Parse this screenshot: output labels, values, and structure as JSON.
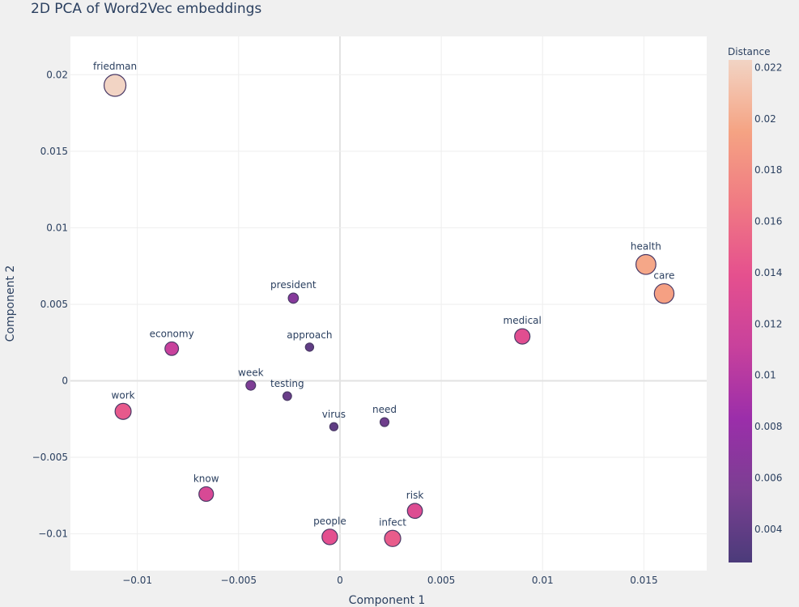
{
  "chart_data": {
    "type": "scatter",
    "title": "2D PCA of Word2Vec embeddings",
    "xlabel": "Component 1",
    "ylabel": "Component 2",
    "xlim": [
      -0.0133,
      0.0181
    ],
    "ylim": [
      -0.0124,
      0.0225
    ],
    "xticks": [
      -0.01,
      -0.005,
      0,
      0.005,
      0.01,
      0.015
    ],
    "xtick_labels": [
      "−0.01",
      "−0.005",
      "0",
      "0.005",
      "0.01",
      "0.015"
    ],
    "yticks": [
      -0.01,
      -0.005,
      0,
      0.005,
      0.01,
      0.015,
      0.02
    ],
    "ytick_labels": [
      "−0.01",
      "−0.005",
      "0",
      "0.005",
      "0.01",
      "0.015",
      "0.02"
    ],
    "grid": true,
    "colorbar": {
      "title": "Distance",
      "range": [
        0.0027,
        0.0223
      ],
      "ticks": [
        0.004,
        0.006,
        0.008,
        0.01,
        0.012,
        0.014,
        0.016,
        0.018,
        0.02,
        0.022
      ],
      "tick_labels": [
        "0.004",
        "0.006",
        "0.008",
        "0.01",
        "0.012",
        "0.014",
        "0.016",
        "0.018",
        "0.02",
        "0.022"
      ],
      "colorscale": [
        "#4b3b7a",
        "#7b3f92",
        "#9b2eaa",
        "#c8419c",
        "#e5508e",
        "#f07a83",
        "#f5a383",
        "#f2d4c4"
      ]
    },
    "points": [
      {
        "word": "friedman",
        "x": -0.0111,
        "y": 0.0193,
        "distance": 0.0223
      },
      {
        "word": "health",
        "x": 0.0151,
        "y": 0.0076,
        "distance": 0.0197
      },
      {
        "word": "care",
        "x": 0.016,
        "y": 0.0057,
        "distance": 0.0193
      },
      {
        "word": "president",
        "x": -0.0023,
        "y": 0.0054,
        "distance": 0.0065
      },
      {
        "word": "medical",
        "x": 0.009,
        "y": 0.0029,
        "distance": 0.0135
      },
      {
        "word": "economy",
        "x": -0.0083,
        "y": 0.0021,
        "distance": 0.0111
      },
      {
        "word": "approach",
        "x": -0.0015,
        "y": 0.0022,
        "distance": 0.004
      },
      {
        "word": "week",
        "x": -0.0044,
        "y": -0.0003,
        "distance": 0.0058
      },
      {
        "word": "testing",
        "x": -0.0026,
        "y": -0.001,
        "distance": 0.0045
      },
      {
        "word": "work",
        "x": -0.0107,
        "y": -0.002,
        "distance": 0.0145
      },
      {
        "word": "virus",
        "x": -0.0003,
        "y": -0.003,
        "distance": 0.0039
      },
      {
        "word": "need",
        "x": 0.0022,
        "y": -0.0027,
        "distance": 0.0048
      },
      {
        "word": "know",
        "x": -0.0066,
        "y": -0.0074,
        "distance": 0.0125
      },
      {
        "word": "risk",
        "x": 0.0037,
        "y": -0.0085,
        "distance": 0.0131
      },
      {
        "word": "people",
        "x": -0.0005,
        "y": -0.0102,
        "distance": 0.0138
      },
      {
        "word": "infect",
        "x": 0.0026,
        "y": -0.0103,
        "distance": 0.0147
      }
    ]
  }
}
